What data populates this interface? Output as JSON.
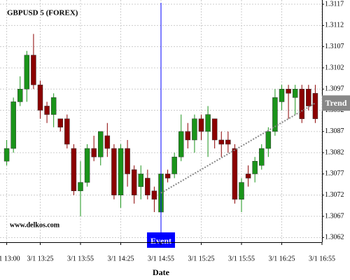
{
  "chart_data": {
    "type": "candlestick",
    "title": "GBPUSD 5 (FOREX)",
    "x_label": "Date",
    "watermark": "www.delkos.com",
    "x": [
      0,
      1,
      2,
      3,
      4,
      5,
      6,
      7,
      8,
      9,
      10,
      11,
      12,
      13,
      14,
      15,
      16,
      17,
      18,
      19,
      20,
      21,
      22,
      23,
      24,
      25,
      26,
      27,
      28,
      29,
      30,
      31,
      32,
      33,
      34,
      35,
      36,
      37,
      38,
      39,
      40,
      41,
      42,
      43,
      44,
      45,
      46
    ],
    "open": [
      1.308,
      1.3083,
      1.3094,
      1.3097,
      1.3105,
      1.3098,
      1.3093,
      1.3091,
      1.309,
      1.309,
      1.3083,
      1.3073,
      1.3075,
      1.3083,
      1.3081,
      1.3086,
      1.3083,
      1.3072,
      1.3083,
      1.3078,
      1.3074,
      1.3076,
      1.3073,
      1.3068,
      1.3077,
      1.3077,
      1.3081,
      1.3087,
      1.3085,
      1.309,
      1.3087,
      1.309,
      1.3085,
      1.3085,
      1.3083,
      1.3071,
      1.3077,
      1.3077,
      1.3079,
      1.3083,
      1.3087,
      1.3094,
      1.3097,
      1.3095,
      1.3097,
      1.3097,
      1.3096
    ],
    "high": [
      1.3085,
      1.3095,
      1.31,
      1.3106,
      1.311,
      1.3099,
      1.3094,
      1.3096,
      1.309,
      1.3091,
      1.3084,
      1.308,
      1.3084,
      1.3086,
      1.3087,
      1.3089,
      1.3084,
      1.3084,
      1.3085,
      1.3079,
      1.3079,
      1.3078,
      1.3074,
      1.3078,
      1.3078,
      1.3082,
      1.3091,
      1.3089,
      1.3091,
      1.3091,
      1.3093,
      1.309,
      1.3087,
      1.3087,
      1.3084,
      1.3076,
      1.3079,
      1.3081,
      1.3084,
      1.3088,
      1.3097,
      1.3098,
      1.3098,
      1.3098,
      1.3098,
      1.3098,
      1.3098
    ],
    "low": [
      1.3079,
      1.3082,
      1.3093,
      1.3094,
      1.3097,
      1.309,
      1.3089,
      1.3088,
      1.3087,
      1.3083,
      1.3072,
      1.3067,
      1.3074,
      1.308,
      1.3079,
      1.3081,
      1.3071,
      1.3069,
      1.3074,
      1.307,
      1.3071,
      1.3071,
      1.3068,
      1.3067,
      1.3075,
      1.3076,
      1.308,
      1.3083,
      1.3082,
      1.3085,
      1.3081,
      1.3083,
      1.3081,
      1.3082,
      1.307,
      1.3068,
      1.3074,
      1.3075,
      1.3078,
      1.3081,
      1.3086,
      1.3092,
      1.309,
      1.3091,
      1.3089,
      1.3092,
      1.3089
    ],
    "close": [
      1.3083,
      1.3094,
      1.3097,
      1.3105,
      1.3098,
      1.3092,
      1.3091,
      1.3095,
      1.3088,
      1.3084,
      1.3073,
      1.3075,
      1.3083,
      1.3081,
      1.3087,
      1.3083,
      1.3072,
      1.3083,
      1.3077,
      1.3072,
      1.3077,
      1.3072,
      1.3071,
      1.3077,
      1.3076,
      1.3081,
      1.3087,
      1.3085,
      1.309,
      1.3087,
      1.3091,
      1.3085,
      1.3084,
      1.3084,
      1.3071,
      1.3075,
      1.3076,
      1.308,
      1.3083,
      1.3087,
      1.3095,
      1.3097,
      1.3096,
      1.3097,
      1.309,
      1.3093,
      1.309
    ],
    "up_color": "#1a941a",
    "down_color": "#8b0000",
    "xlim": [
      -1,
      47
    ],
    "xticks": [
      {
        "value": 0,
        "label": "3/1 13:00"
      },
      {
        "value": 5,
        "label": "3/1 13:25"
      },
      {
        "value": 11,
        "label": "3/1 13:55"
      },
      {
        "value": 17,
        "label": "3/1 14:25"
      },
      {
        "value": 23,
        "label": "3/1 14:55"
      },
      {
        "value": 29,
        "label": "3/1 15:25"
      },
      {
        "value": 35,
        "label": "3/1 15:55"
      },
      {
        "value": 41,
        "label": "3/1 16:25"
      },
      {
        "value": 47,
        "label": "3/1 16:55"
      }
    ],
    "ylim": [
      1.3061,
      1.3118
    ],
    "yticks": [
      1.3062,
      1.3067,
      1.3072,
      1.3077,
      1.3082,
      1.3087,
      1.3092,
      1.3097,
      1.3102,
      1.3107,
      1.3112,
      1.3117
    ],
    "grid": true,
    "event": {
      "label": "Event",
      "x": 23,
      "color": "#0000ff"
    },
    "trend": {
      "label": "Trend",
      "x": [
        23,
        46
      ],
      "y": [
        1.30725,
        1.30937
      ],
      "color": "#888888"
    }
  }
}
